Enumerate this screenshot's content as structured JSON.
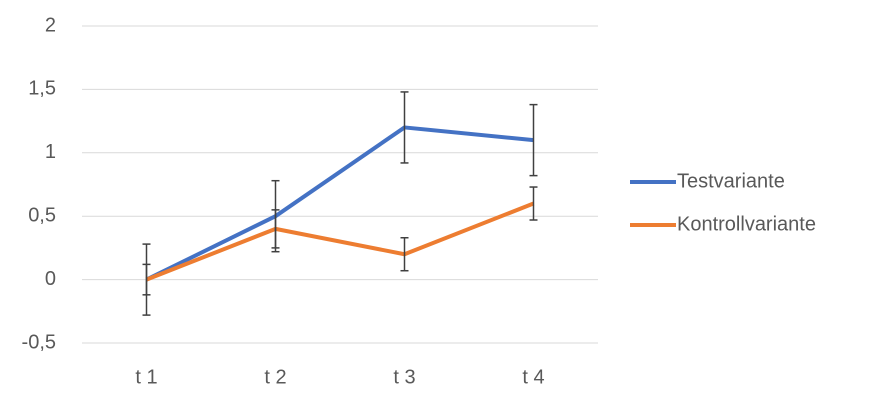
{
  "chart_data": {
    "type": "line",
    "categories": [
      "t 1",
      "t 2",
      "t 3",
      "t 4"
    ],
    "series": [
      {
        "name": "Testvariante",
        "color": "#4472c4",
        "values": [
          0,
          0.5,
          1.2,
          1.1
        ],
        "errors": [
          0.28,
          0.28,
          0.28,
          0.28
        ]
      },
      {
        "name": "Kontrollvariante",
        "color": "#ed7d31",
        "values": [
          0,
          0.4,
          0.2,
          0.6
        ],
        "errors": [
          0.12,
          0.15,
          0.13,
          0.13
        ]
      }
    ],
    "ylim": [
      -0.5,
      2
    ],
    "yticks": [
      {
        "value": -0.5,
        "label": "-0,5"
      },
      0,
      {
        "value": 0.5,
        "label": "0,5"
      },
      1,
      {
        "value": 1.5,
        "label": "1,5"
      },
      2
    ],
    "grid": true,
    "legend": "right"
  }
}
